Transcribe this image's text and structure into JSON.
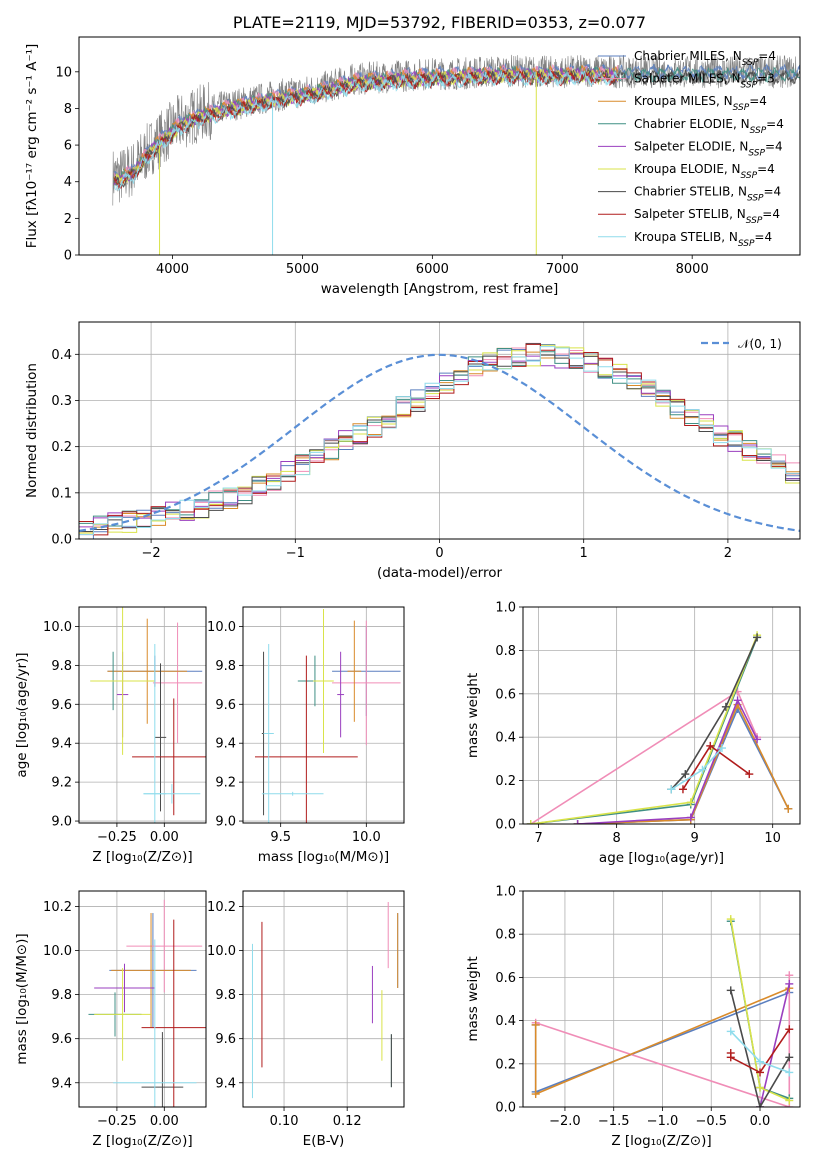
{
  "chart_data": [
    {
      "id": "spectrum",
      "type": "line",
      "title": "PLATE=2119, MJD=53792, FIBERID=0353, z=0.077",
      "xlabel": "wavelength [Angstrom, rest frame]",
      "ylabel": "Flux [fλ10⁻¹⁷ erg cm⁻² s⁻¹ A⁻¹]",
      "xlim": [
        3280,
        8830
      ],
      "ylim": [
        0,
        11.9
      ],
      "xticks": [
        4000,
        5000,
        6000,
        7000,
        8000
      ],
      "yticks": [
        0,
        2,
        4,
        6,
        8,
        10
      ],
      "legend_position": "right",
      "data_series": {
        "name": "",
        "color": "#808080"
      },
      "continuum_x": [
        3600,
        3700,
        3850,
        3950,
        4050,
        4200,
        4400,
        4600,
        4800,
        5000,
        5200,
        5400,
        5600,
        5800,
        6000,
        6200,
        6400,
        6600,
        6800,
        7000,
        7200,
        7400
      ],
      "continuum_y": [
        4.3,
        4.7,
        6.0,
        6.6,
        7.2,
        7.7,
        8.1,
        8.4,
        8.7,
        8.9,
        9.2,
        9.6,
        9.7,
        9.8,
        9.9,
        9.9,
        10.0,
        10.05,
        10.0,
        10.0,
        10.05,
        10.0
      ],
      "legend": [
        {
          "label": "Chabrier MILES, N",
          "sub": "SSP",
          "suffix": "=4",
          "color": "#5b7fbf"
        },
        {
          "label": "Salpeter MILES, N",
          "sub": "SSP",
          "suffix": "=3",
          "color": "#f08db7"
        },
        {
          "label": "Kroupa MILES, N",
          "sub": "SSP",
          "suffix": "=4",
          "color": "#d98b2b"
        },
        {
          "label": "Chabrier ELODIE, N",
          "sub": "SSP",
          "suffix": "=4",
          "color": "#3f8f84"
        },
        {
          "label": "Salpeter ELODIE, N",
          "sub": "SSP",
          "suffix": "=4",
          "color": "#9a3fbf"
        },
        {
          "label": "Kroupa ELODIE, N",
          "sub": "SSP",
          "suffix": "=4",
          "color": "#d9e34a"
        },
        {
          "label": "Chabrier STELIB, N",
          "sub": "SSP",
          "suffix": "=4",
          "color": "#4a4a4a"
        },
        {
          "label": "Salpeter STELIB, N",
          "sub": "SSP",
          "suffix": "=4",
          "color": "#b01c1c"
        },
        {
          "label": "Kroupa STELIB, N",
          "sub": "SSP",
          "suffix": "=4",
          "color": "#8fdcec"
        }
      ]
    },
    {
      "id": "residuals",
      "type": "line",
      "xlabel": "(data-model)/error",
      "ylabel": "Normed distribution",
      "xlim": [
        -2.5,
        2.5
      ],
      "ylim": [
        0,
        0.47
      ],
      "xticks": [
        -2,
        -1,
        0,
        1,
        2
      ],
      "xtick_labels": [
        "−2",
        "−1",
        "0",
        "1",
        "2"
      ],
      "yticks": [
        0,
        0.1,
        0.2,
        0.3,
        0.4
      ],
      "ytick_labels": [
        "0.0",
        "0.1",
        "0.2",
        "0.3",
        "0.4"
      ],
      "legend_position": "top-right",
      "gaussian": {
        "label": "𝒩(0, 1)",
        "color": "#5a8fd6"
      },
      "bin_width": 0.1,
      "bin_start": -2.5,
      "histogram_base": [
        0.022,
        0.028,
        0.034,
        0.038,
        0.042,
        0.048,
        0.055,
        0.06,
        0.068,
        0.08,
        0.09,
        0.1,
        0.115,
        0.13,
        0.145,
        0.16,
        0.175,
        0.192,
        0.21,
        0.225,
        0.245,
        0.265,
        0.285,
        0.3,
        0.32,
        0.34,
        0.355,
        0.37,
        0.385,
        0.39,
        0.395,
        0.4,
        0.4,
        0.395,
        0.39,
        0.385,
        0.37,
        0.355,
        0.34,
        0.32,
        0.3,
        0.285,
        0.265,
        0.245,
        0.225,
        0.21,
        0.192,
        0.175,
        0.16,
        0.145
      ],
      "series_colors": [
        "#5b7fbf",
        "#f08db7",
        "#d98b2b",
        "#3f8f84",
        "#9a3fbf",
        "#d9e34a",
        "#4a4a4a",
        "#b01c1c",
        "#8fdcec"
      ]
    },
    {
      "id": "age-vs-Z",
      "type": "scatter",
      "xlabel": "Z [log₁₀(Z/Z⊙)]",
      "ylabel": "age  [log₁₀(age/yr)]",
      "xlim": [
        -0.45,
        0.22
      ],
      "ylim": [
        8.99,
        10.1
      ],
      "xticks": [
        -0.25,
        0.0
      ],
      "xtick_labels": [
        "−0.25",
        "0.00"
      ],
      "yticks": [
        9.0,
        9.2,
        9.4,
        9.6,
        9.8,
        10.0
      ],
      "ytick_labels": [
        "9.0",
        "9.2",
        "9.4",
        "9.6",
        "9.8",
        "10.0"
      ],
      "points": [
        {
          "x": -0.05,
          "xerr": 0.25,
          "y": 9.77,
          "yerr": 0.08,
          "color": "#5b7fbf"
        },
        {
          "x": 0.07,
          "xerr": 0.13,
          "y": 9.71,
          "yerr": 0.31,
          "color": "#f08db7"
        },
        {
          "x": -0.09,
          "xerr": 0.21,
          "y": 9.77,
          "yerr": 0.27,
          "color": "#d98b2b"
        },
        {
          "x": -0.27,
          "xerr": 0.12,
          "y": 9.72,
          "yerr": 0.15,
          "color": "#3f8f84"
        },
        {
          "x": -0.22,
          "xerr": 0.03,
          "y": 9.65,
          "yerr": 0.22,
          "color": "#9a3fbf"
        },
        {
          "x": -0.22,
          "xerr": 0.17,
          "y": 9.72,
          "yerr": 0.38,
          "color": "#d9e34a"
        },
        {
          "x": -0.02,
          "xerr": 0.03,
          "y": 9.43,
          "yerr": 0.38,
          "color": "#4a4a4a"
        },
        {
          "x": 0.05,
          "xerr": 0.22,
          "y": 9.33,
          "yerr": 0.3,
          "color": "#b01c1c"
        },
        {
          "x": -0.05,
          "xerr": 0.06,
          "y": 9.14,
          "yerr": 0.77,
          "color": "#8fdcec"
        },
        {
          "x": 0.04,
          "xerr": 0.15,
          "y": 9.14,
          "yerr": 0.05,
          "color": "#8fdcec"
        }
      ]
    },
    {
      "id": "age-vs-mass",
      "type": "scatter",
      "xlabel": "mass [log₁₀(M/M⊙)]",
      "ylabel": "",
      "xlim": [
        9.28,
        10.22
      ],
      "ylim": [
        8.99,
        10.1
      ],
      "xticks": [
        9.5,
        10.0
      ],
      "xtick_labels": [
        "9.5",
        "10.0"
      ],
      "yticks": [
        9.0,
        9.2,
        9.4,
        9.6,
        9.8,
        10.0
      ],
      "ytick_labels": [
        "9.0",
        "9.2",
        "9.4",
        "9.6",
        "9.8",
        "10.0"
      ],
      "points": [
        {
          "x": 10.0,
          "xerr": 0.2,
          "y": 9.77,
          "yerr": 0.23,
          "color": "#5b7fbf"
        },
        {
          "x": 10.0,
          "xerr": 0.2,
          "y": 9.71,
          "yerr": 0.32,
          "color": "#f08db7"
        },
        {
          "x": 9.93,
          "xerr": 0.04,
          "y": 9.77,
          "yerr": 0.26,
          "color": "#d98b2b"
        },
        {
          "x": 9.7,
          "xerr": 0.1,
          "y": 9.72,
          "yerr": 0.13,
          "color": "#3f8f84"
        },
        {
          "x": 9.85,
          "xerr": 0.02,
          "y": 9.65,
          "yerr": 0.22,
          "color": "#9a3fbf"
        },
        {
          "x": 9.75,
          "xerr": 0.06,
          "y": 9.72,
          "yerr": 0.37,
          "color": "#d9e34a"
        },
        {
          "x": 9.4,
          "xerr": 0.01,
          "y": 9.45,
          "yerr": 0.42,
          "color": "#4a4a4a"
        },
        {
          "x": 9.65,
          "xerr": 0.3,
          "y": 9.33,
          "yerr": 0.52,
          "color": "#b01c1c"
        },
        {
          "x": 9.43,
          "xerr": 0.03,
          "y": 9.45,
          "yerr": 0.46,
          "color": "#8fdcec"
        },
        {
          "x": 9.57,
          "xerr": 0.18,
          "y": 9.14,
          "yerr": 0.01,
          "color": "#8fdcec"
        }
      ]
    },
    {
      "id": "weight-vs-age",
      "type": "line",
      "xlabel": "age  [log₁₀(age/yr)]",
      "ylabel": "mass weight",
      "xlim": [
        6.8,
        10.35
      ],
      "ylim": [
        0,
        1.0
      ],
      "xticks": [
        7,
        8,
        9,
        10
      ],
      "yticks": [
        0,
        0.2,
        0.4,
        0.6,
        0.8,
        1.0
      ],
      "ytick_labels": [
        "0.0",
        "0.2",
        "0.4",
        "0.6",
        "0.8",
        "1.0"
      ],
      "series": [
        {
          "name": "",
          "color": "#5b7fbf",
          "x": [
            7.5,
            8.95,
            9.55,
            10.2
          ],
          "y": [
            0.0,
            0.02,
            0.53,
            0.07
          ]
        },
        {
          "name": "",
          "color": "#f08db7",
          "x": [
            6.9,
            9.55,
            9.8
          ],
          "y": [
            0.0,
            0.61,
            0.4
          ]
        },
        {
          "name": "",
          "color": "#d98b2b",
          "x": [
            7.5,
            8.95,
            9.55,
            10.2
          ],
          "y": [
            0.0,
            0.02,
            0.55,
            0.07
          ]
        },
        {
          "name": "",
          "color": "#3f8f84",
          "x": [
            6.9,
            8.95,
            9.8
          ],
          "y": [
            0.0,
            0.09,
            0.86
          ]
        },
        {
          "name": "",
          "color": "#9a3fbf",
          "x": [
            7.5,
            8.95,
            9.55,
            9.8
          ],
          "y": [
            0.0,
            0.03,
            0.57,
            0.39
          ]
        },
        {
          "name": "",
          "color": "#d9e34a",
          "x": [
            6.9,
            8.95,
            9.8
          ],
          "y": [
            0.0,
            0.1,
            0.87
          ]
        },
        {
          "name": "",
          "color": "#4a4a4a",
          "x": [
            8.7,
            8.88,
            9.4,
            9.8
          ],
          "y": [
            0.16,
            0.23,
            0.54,
            0.86
          ]
        },
        {
          "name": "",
          "color": "#b01c1c",
          "x": [
            8.85,
            9.2,
            9.7
          ],
          "y": [
            0.16,
            0.36,
            0.23
          ]
        },
        {
          "name": "",
          "color": "#8fdcec",
          "x": [
            8.7,
            9.1,
            9.35
          ],
          "y": [
            0.16,
            0.25,
            0.35
          ]
        }
      ]
    },
    {
      "id": "mass-vs-Z",
      "type": "scatter",
      "xlabel": "Z [log₁₀(Z/Z⊙)]",
      "ylabel": "mass [log₁₀(M/M⊙)]",
      "xlim": [
        -0.45,
        0.22
      ],
      "ylim": [
        9.29,
        10.27
      ],
      "xticks": [
        -0.25,
        0.0
      ],
      "xtick_labels": [
        "−0.25",
        "0.00"
      ],
      "yticks": [
        9.4,
        9.6,
        9.8,
        10.0,
        10.2
      ],
      "ytick_labels": [
        "9.4",
        "9.6",
        "9.8",
        "10.0",
        "10.2"
      ],
      "points": [
        {
          "x": -0.06,
          "xerr": 0.23,
          "y": 9.91,
          "yerr": 0.26,
          "color": "#5b7fbf"
        },
        {
          "x": 0.0,
          "xerr": 0.2,
          "y": 10.02,
          "yerr": 0.21,
          "color": "#f08db7"
        },
        {
          "x": -0.07,
          "xerr": 0.21,
          "y": 9.91,
          "yerr": 0.26,
          "color": "#d98b2b"
        },
        {
          "x": -0.26,
          "xerr": 0.14,
          "y": 9.71,
          "yerr": 0.1,
          "color": "#3f8f84"
        },
        {
          "x": -0.21,
          "xerr": 0.16,
          "y": 9.83,
          "yerr": 0.11,
          "color": "#9a3fbf"
        },
        {
          "x": -0.22,
          "xerr": 0.15,
          "y": 9.71,
          "yerr": 0.21,
          "color": "#d9e34a"
        },
        {
          "x": -0.01,
          "xerr": 0.11,
          "y": 9.38,
          "yerr": 0.25,
          "color": "#4a4a4a"
        },
        {
          "x": 0.05,
          "xerr": 0.17,
          "y": 9.65,
          "yerr": 0.49,
          "color": "#b01c1c"
        },
        {
          "x": -0.05,
          "xerr": 0.22,
          "y": 9.4,
          "yerr": 0.65,
          "color": "#8fdcec"
        }
      ]
    },
    {
      "id": "mass-vs-ebv",
      "type": "scatter",
      "xlabel": "E(B-V)",
      "ylabel": "",
      "xlim": [
        0.087,
        0.138
      ],
      "ylim": [
        9.29,
        10.27
      ],
      "xticks": [
        0.1,
        0.12
      ],
      "xtick_labels": [
        "0.10",
        "0.12"
      ],
      "yticks": [
        9.4,
        9.6,
        9.8,
        10.0,
        10.2
      ],
      "ytick_labels": [
        "9.4",
        "9.6",
        "9.8",
        "10.0",
        "10.2"
      ],
      "points": [
        {
          "x": 0.136,
          "xerr": 0,
          "y": 10.0,
          "yerr": 0.17,
          "color": "#5b7fbf"
        },
        {
          "x": 0.133,
          "xerr": 0,
          "y": 10.07,
          "yerr": 0.15,
          "color": "#f08db7"
        },
        {
          "x": 0.136,
          "xerr": 0,
          "y": 10.0,
          "yerr": 0.17,
          "color": "#d98b2b"
        },
        {
          "x": 0.134,
          "xerr": 0,
          "y": 9.5,
          "yerr": 0.12,
          "color": "#3f8f84"
        },
        {
          "x": 0.128,
          "xerr": 0,
          "y": 9.8,
          "yerr": 0.13,
          "color": "#9a3fbf"
        },
        {
          "x": 0.131,
          "xerr": 0,
          "y": 9.66,
          "yerr": 0.16,
          "color": "#d9e34a"
        },
        {
          "x": 0.134,
          "xerr": 0,
          "y": 9.5,
          "yerr": 0.12,
          "color": "#4a4a4a"
        },
        {
          "x": 0.093,
          "xerr": 0,
          "y": 9.8,
          "yerr": 0.33,
          "color": "#b01c1c"
        },
        {
          "x": 0.09,
          "xerr": 0,
          "y": 9.68,
          "yerr": 0.35,
          "color": "#8fdcec"
        }
      ]
    },
    {
      "id": "weight-vs-Z",
      "type": "line",
      "xlabel": "Z [log₁₀(Z/Z⊙)]",
      "ylabel": "mass weight",
      "xlim": [
        -2.43,
        0.41
      ],
      "ylim": [
        0,
        1.0
      ],
      "xticks": [
        -2.0,
        -1.5,
        -1.0,
        -0.5,
        0.0
      ],
      "xtick_labels": [
        "−2.0",
        "−1.5",
        "−1.0",
        "−0.5",
        "0.0"
      ],
      "yticks": [
        0,
        0.2,
        0.4,
        0.6,
        0.8,
        1.0
      ],
      "ytick_labels": [
        "0.0",
        "0.2",
        "0.4",
        "0.6",
        "0.8",
        "1.0"
      ],
      "series": [
        {
          "name": "",
          "color": "#5b7fbf",
          "x": [
            -2.3,
            -2.3,
            0.3
          ],
          "y": [
            0.38,
            0.07,
            0.53
          ]
        },
        {
          "name": "",
          "color": "#f08db7",
          "x": [
            -2.3,
            0.3,
            0.3
          ],
          "y": [
            0.39,
            0.0,
            0.61
          ]
        },
        {
          "name": "",
          "color": "#d98b2b",
          "x": [
            -2.3,
            -2.3,
            0.3
          ],
          "y": [
            0.38,
            0.06,
            0.55
          ]
        },
        {
          "name": "",
          "color": "#3f8f84",
          "x": [
            -0.3,
            0.0,
            0.3
          ],
          "y": [
            0.86,
            0.09,
            0.04
          ]
        },
        {
          "name": "",
          "color": "#9a3fbf",
          "x": [
            0.0,
            0.3
          ],
          "y": [
            0.0,
            0.57
          ]
        },
        {
          "name": "",
          "color": "#d9e34a",
          "x": [
            -0.3,
            0.0,
            0.3
          ],
          "y": [
            0.87,
            0.09,
            0.03
          ]
        },
        {
          "name": "",
          "color": "#4a4a4a",
          "x": [
            -0.3,
            0.0,
            0.3
          ],
          "y": [
            0.54,
            0.0,
            0.23
          ]
        },
        {
          "name": "",
          "color": "#b01c1c",
          "x": [
            -0.3,
            -0.3,
            0.0,
            0.3
          ],
          "y": [
            0.25,
            0.23,
            0.16,
            0.36
          ]
        },
        {
          "name": "",
          "color": "#8fdcec",
          "x": [
            -0.3,
            0.0,
            0.3
          ],
          "y": [
            0.35,
            0.21,
            0.16
          ]
        }
      ]
    }
  ]
}
